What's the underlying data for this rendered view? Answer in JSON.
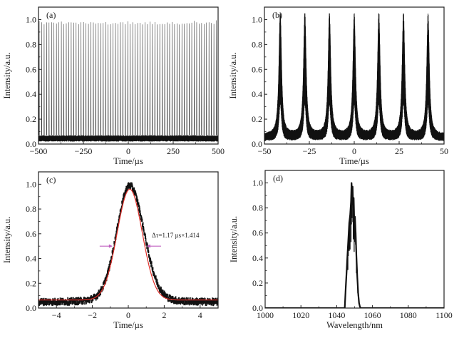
{
  "chart_data": [
    {
      "type": "line",
      "panel": "(a)",
      "title": "",
      "xlabel": "Time/µs",
      "ylabel": "Intensity/a.u.",
      "xlim": [
        -500,
        500
      ],
      "ylim": [
        0,
        1.1
      ],
      "xticks": [
        -500,
        -250,
        0,
        250,
        500
      ],
      "xtick_labels": [
        "−500",
        "−250",
        "0",
        "250",
        "500"
      ],
      "yticks": [
        0,
        0.2,
        0.4,
        0.6,
        0.8,
        1.0
      ],
      "ytick_labels": [
        "0.0",
        "0.2",
        "0.4",
        "0.6",
        "0.8",
        "1.0"
      ],
      "grid": false,
      "series": [
        {
          "name": "pulse train",
          "pulse_period": 13.7,
          "pulse_peak": 0.98,
          "pulse_width_fwhm": 1.65,
          "baseline": [
            0.02,
            0.07
          ],
          "color": "#111111"
        }
      ]
    },
    {
      "type": "line",
      "panel": "(b)",
      "title": "",
      "xlabel": "Time/µs",
      "ylabel": "Intensity/a.u.",
      "xlim": [
        -50,
        50
      ],
      "ylim": [
        0,
        1.1
      ],
      "xticks": [
        -50,
        -25,
        0,
        25,
        50
      ],
      "xtick_labels": [
        "−50",
        "−25",
        "0",
        "25",
        "50"
      ],
      "yticks": [
        0,
        0.2,
        0.4,
        0.6,
        0.8,
        1.0
      ],
      "ytick_labels": [
        "0.0",
        "0.2",
        "0.4",
        "0.6",
        "0.8",
        "1.0"
      ],
      "grid": false,
      "series": [
        {
          "name": "pulse train (zoom)",
          "peaks_x": [
            -41.2,
            -27.5,
            -13.8,
            0.0,
            13.7,
            27.4,
            41.1
          ],
          "peaks_y": [
            1.0,
            0.98,
            0.98,
            0.97,
            0.98,
            0.98,
            0.97
          ],
          "pulse_width_fwhm": 1.65,
          "baseline": [
            0.02,
            0.07
          ],
          "color": "#111111"
        }
      ]
    },
    {
      "type": "line",
      "panel": "(c)",
      "title": "",
      "xlabel": "Time/µs",
      "ylabel": "Intensity/a.u.",
      "xlim": [
        -5,
        5
      ],
      "ylim": [
        0,
        1.1
      ],
      "xticks": [
        -4,
        -2,
        0,
        2,
        4
      ],
      "xtick_labels": [
        "−4",
        "−2",
        "0",
        "2",
        "4"
      ],
      "yticks": [
        0,
        0.2,
        0.4,
        0.6,
        0.8,
        1.0
      ],
      "ytick_labels": [
        "0.0",
        "0.2",
        "0.4",
        "0.6",
        "0.8",
        "1.0"
      ],
      "grid": false,
      "annotation": "Δτ=1.17 µs×1.414",
      "fwhm_level": 0.5,
      "fwhm_edges": [
        -0.8,
        0.95
      ],
      "series": [
        {
          "name": "measured pulse",
          "center": 0.08,
          "peak": 0.96,
          "baseline": 0.05,
          "color": "#111111"
        },
        {
          "name": "Gaussian fit",
          "center": 0.08,
          "peak": 0.96,
          "baseline": 0.065,
          "fwhm": 1.65,
          "color": "#e0302a"
        }
      ],
      "arrow_color": "#c060c0"
    },
    {
      "type": "line",
      "panel": "(d)",
      "title": "",
      "xlabel": "Wavelength/nm",
      "ylabel": "Intensity/a.u.",
      "xlim": [
        1000,
        1100
      ],
      "ylim": [
        0,
        1.1
      ],
      "xticks": [
        1000,
        1020,
        1040,
        1060,
        1080,
        1100
      ],
      "xtick_labels": [
        "1000",
        "1020",
        "1040",
        "1060",
        "1080",
        "1100"
      ],
      "yticks": [
        0,
        0.2,
        0.4,
        0.6,
        0.8,
        1.0
      ],
      "ytick_labels": [
        "0.0",
        "0.2",
        "0.4",
        "0.6",
        "0.8",
        "1.0"
      ],
      "grid": false,
      "series": [
        {
          "name": "spectrum",
          "x": [
            1000,
            1044.5,
            1045.0,
            1045.5,
            1046.0,
            1046.5,
            1047.0,
            1047.5,
            1048.0,
            1048.3,
            1048.6,
            1048.9,
            1049.2,
            1049.5,
            1049.8,
            1050.2,
            1050.6,
            1051.0,
            1051.5,
            1052.0,
            1052.5,
            1053.0,
            1053.5,
            1100
          ],
          "y": [
            0.0,
            0.0,
            0.15,
            0.28,
            0.42,
            0.55,
            0.68,
            0.74,
            0.85,
            1.0,
            0.9,
            0.97,
            0.8,
            0.88,
            0.7,
            0.73,
            0.6,
            0.42,
            0.25,
            0.12,
            0.04,
            0.01,
            0.0,
            0.0
          ],
          "color": "#111111"
        }
      ]
    }
  ]
}
